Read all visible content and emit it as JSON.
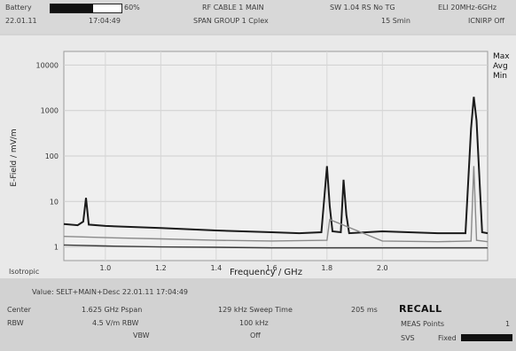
{
  "header": {
    "battery_label": "Battery",
    "battery_level_pct": 60,
    "battery_pct_text": "60%",
    "date_label": "22.01.11",
    "time_label": "17:04:49",
    "cable_label": "RF CABLE 1 MAIN",
    "group_label": "SPAN GROUP 1 Cplex",
    "sweep_label": "SW 1.04 RS No TG",
    "sweep_sub": "15 Smin",
    "range_label": "ELI 20MHz-6GHz",
    "range_sub": "ICNIRP Off"
  },
  "chart_data": {
    "type": "line",
    "xlabel": "Frequency / GHz",
    "ylabel": "E-Field / mV/m",
    "ylog": true,
    "xlim": [
      0.85,
      2.38
    ],
    "ylim": [
      0.5,
      20000
    ],
    "yticks": [
      {
        "v": 10000,
        "label": "10000"
      },
      {
        "v": 1000,
        "label": "1000"
      },
      {
        "v": 100,
        "label": "100"
      },
      {
        "v": 10,
        "label": "10"
      },
      {
        "v": 1,
        "label": "1"
      }
    ],
    "xticks": [
      {
        "v": 1.0,
        "label": "1.0"
      },
      {
        "v": 1.2,
        "label": "1.2"
      },
      {
        "v": 1.4,
        "label": "1.4"
      },
      {
        "v": 1.6,
        "label": "1.6"
      },
      {
        "v": 1.8,
        "label": "1.8"
      },
      {
        "v": 2.0,
        "label": "2.0"
      }
    ],
    "series": [
      {
        "name": "Max",
        "color": "#1b1b1b",
        "x": [
          0.85,
          0.9,
          0.92,
          0.93,
          0.94,
          1.0,
          1.2,
          1.4,
          1.6,
          1.7,
          1.78,
          1.8,
          1.81,
          1.82,
          1.85,
          1.86,
          1.87,
          1.88,
          2.0,
          2.2,
          2.3,
          2.32,
          2.33,
          2.34,
          2.36,
          2.38
        ],
        "y": [
          3.2,
          3.0,
          3.6,
          12,
          3.1,
          2.9,
          2.6,
          2.3,
          2.1,
          2.0,
          2.1,
          60,
          8,
          2.2,
          2.1,
          30,
          5,
          2.0,
          2.2,
          2.0,
          2.0,
          400,
          2000,
          600,
          2.1,
          2.0
        ]
      },
      {
        "name": "Avg",
        "color": "#8a8a8a",
        "x": [
          0.85,
          1.0,
          1.2,
          1.4,
          1.6,
          1.8,
          1.81,
          2.0,
          2.2,
          2.32,
          2.33,
          2.34,
          2.38
        ],
        "y": [
          1.7,
          1.6,
          1.5,
          1.4,
          1.35,
          1.4,
          4,
          1.35,
          1.3,
          1.35,
          60,
          1.4,
          1.3
        ]
      },
      {
        "name": "Min",
        "color": "#3a3a3a",
        "x": [
          0.85,
          1.0,
          1.2,
          1.4,
          1.6,
          1.8,
          2.0,
          2.2,
          2.38
        ],
        "y": [
          1.1,
          1.05,
          1.0,
          0.98,
          0.95,
          0.95,
          0.95,
          0.95,
          0.95
        ]
      }
    ]
  },
  "footer": {
    "left_title": "Isotropic",
    "status_line": "Value: SELT+MAIN+Desc 22.01.11 17:04:49",
    "row1": {
      "k1": "Center",
      "v1": "1.625 GHz Pspan",
      "v2": "129 kHz Sweep Time",
      "v3": "205 ms"
    },
    "row2": {
      "k1": "RBW",
      "v1": "4.5 V/m RBW",
      "v2": "100 kHz"
    },
    "row3": {
      "v1": "VBW",
      "v2": "Off"
    },
    "recall_label": "RECALL",
    "side1": "MEAS Points",
    "side1_val": "1",
    "side2": "SVS",
    "side2_val": "Fixed"
  }
}
